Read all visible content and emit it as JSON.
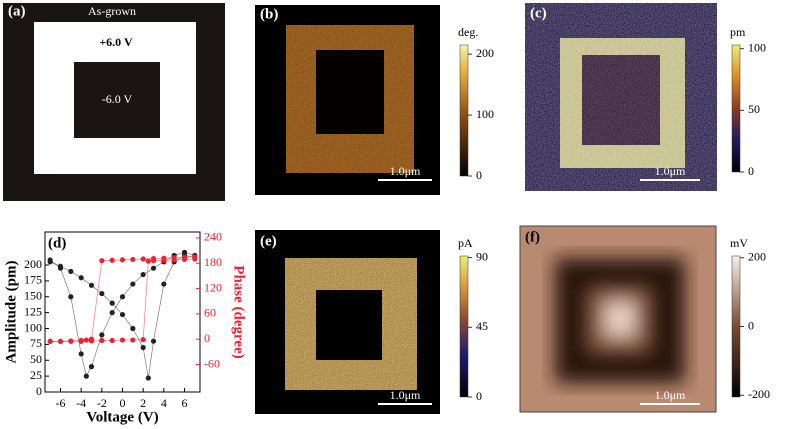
{
  "panel_a": {
    "label": "(a)",
    "top_text": "As-grown",
    "outer_text": "+6.0 V",
    "inner_text": "-6.0 V"
  },
  "maps": [
    {
      "label": "(b)",
      "unit": "deg.",
      "lim": [
        0,
        215
      ],
      "ticks": [
        0,
        100,
        200
      ],
      "scale_bar": "1.0μm"
    },
    {
      "label": "(c)",
      "unit": "pm",
      "lim": [
        0,
        103
      ],
      "ticks": [
        0,
        50,
        100
      ],
      "scale_bar": "1.0μm"
    },
    {
      "label": "(e)",
      "unit": "pA",
      "lim": [
        0,
        91
      ],
      "ticks": [
        0,
        45,
        90
      ],
      "scale_bar": "1.0μm"
    },
    {
      "label": "(f)",
      "unit": "mV",
      "lim": [
        -205,
        205
      ],
      "ticks": [
        -200,
        0,
        200
      ],
      "scale_bar": "1.0μm"
    }
  ],
  "chart_data": {
    "type": "scatter",
    "label": "(d)",
    "x_label": "Voltage (V)",
    "y_label": "Amplitude (pm)",
    "y2_label": "Phase (degree)",
    "xlim": [
      -7.5,
      7.5
    ],
    "xticks": [
      -6,
      -4,
      -2,
      0,
      2,
      4,
      6
    ],
    "ylim": [
      0,
      252
    ],
    "yticks": [
      0,
      25,
      50,
      75,
      100,
      125,
      150,
      175,
      200
    ],
    "y2lim": [
      -125,
      254
    ],
    "y2ticks": [
      -60,
      0,
      60,
      120,
      180,
      240
    ],
    "series": [
      {
        "color": "#222222",
        "axis": "y",
        "x": [
          -7,
          -6,
          -5,
          -4,
          -3,
          -2,
          -1,
          0,
          1,
          2,
          2.5,
          3,
          4,
          5,
          6,
          7
        ],
        "values": [
          205,
          198,
          190,
          180,
          168,
          155,
          140,
          122,
          100,
          70,
          22,
          80,
          170,
          205,
          215,
          212
        ]
      },
      {
        "color": "#222222",
        "axis": "y",
        "x": [
          7,
          6,
          5,
          4,
          3,
          2,
          1,
          0,
          -1,
          -2,
          -3,
          -3.5,
          -4,
          -5,
          -6,
          -7
        ],
        "values": [
          215,
          220,
          215,
          205,
          195,
          185,
          170,
          150,
          125,
          90,
          40,
          25,
          60,
          150,
          195,
          208
        ]
      },
      {
        "color": "#ee2233",
        "axis": "y2",
        "x": [
          -7,
          -6,
          -5,
          -4,
          -3,
          -2,
          -1,
          0,
          1,
          2,
          2.5,
          3,
          4,
          5,
          6,
          7
        ],
        "values": [
          -5,
          -5,
          -5,
          -5,
          -4,
          -3,
          -3,
          -2,
          -2,
          -1,
          185,
          186,
          187,
          188,
          189,
          190
        ]
      },
      {
        "color": "#ee2233",
        "axis": "y2",
        "x": [
          7,
          6,
          5,
          4,
          3,
          2,
          1,
          0,
          -1,
          -2,
          -3,
          -3.5,
          -4,
          -5,
          -6,
          -7
        ],
        "values": [
          195,
          194,
          193,
          192,
          191,
          190,
          189,
          188,
          187,
          186,
          0,
          -2,
          -3,
          -4,
          -5,
          -5
        ]
      }
    ]
  }
}
